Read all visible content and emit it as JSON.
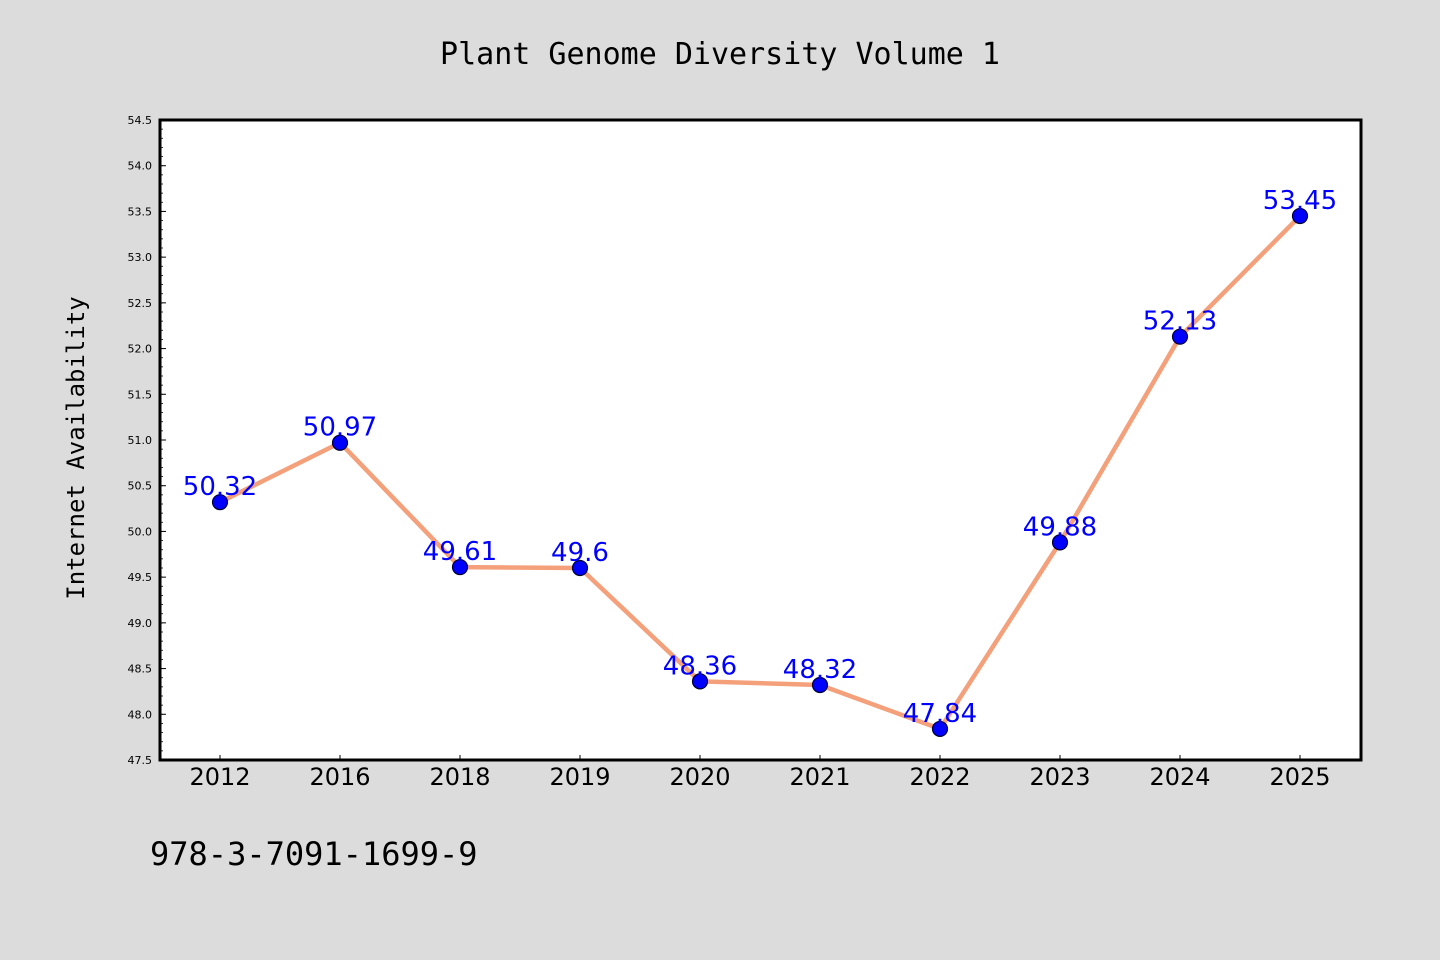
{
  "chart_data": {
    "type": "line",
    "title": "Plant Genome Diversity Volume 1",
    "xlabel": "",
    "ylabel": "Internet Availability",
    "categories": [
      "2012",
      "2016",
      "2018",
      "2019",
      "2020",
      "2021",
      "2022",
      "2023",
      "2024",
      "2025"
    ],
    "series": [
      {
        "values": [
          50.32,
          50.97,
          49.61,
          49.6,
          48.36,
          48.32,
          47.84,
          49.88,
          52.13,
          53.45
        ],
        "data_labels": [
          "50.32",
          "50.97",
          "49.61",
          "49.6",
          "48.36",
          "48.32",
          "47.84",
          "49.88",
          "52.13",
          "53.45"
        ]
      }
    ],
    "ylim": [
      47.5,
      54.5
    ],
    "yticks": [
      "47.5",
      "48.0",
      "48.5",
      "49.0",
      "49.5",
      "50.0",
      "50.5",
      "51.0",
      "51.5",
      "52.0",
      "52.5",
      "53.0",
      "53.5",
      "54.0",
      "54.5"
    ],
    "grid": false,
    "legend": "none",
    "colors": {
      "line": "#f4a07a",
      "marker": "#0000ff",
      "marker_edge": "#000033",
      "data_label": "#0000ff",
      "background": "#dcdcdc",
      "plot_background": "#ffffff"
    }
  },
  "footnote": "978-3-7091-1699-9"
}
